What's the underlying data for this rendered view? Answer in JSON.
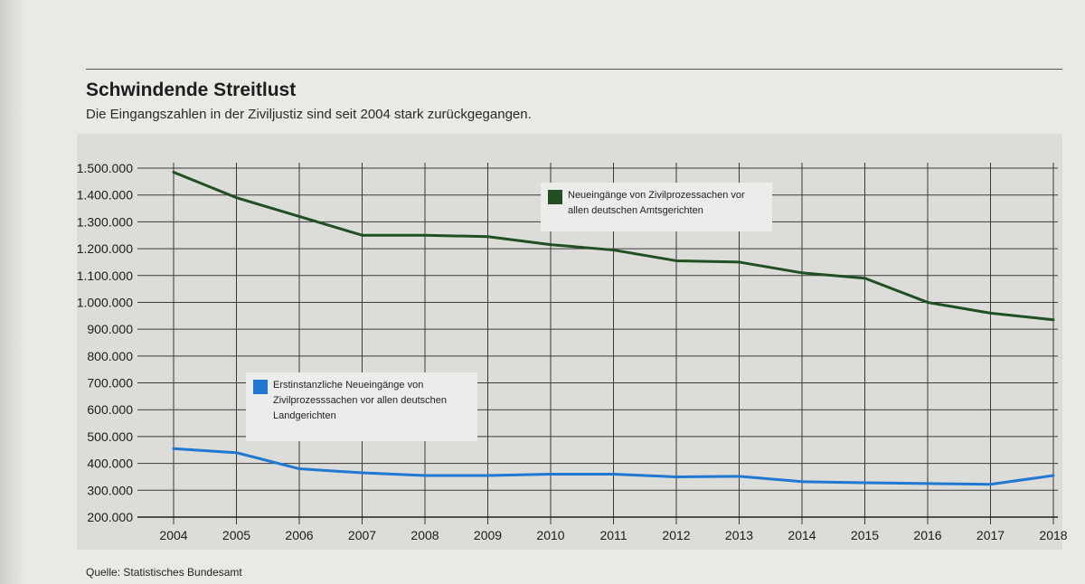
{
  "title": "Schwindende Streitlust",
  "subtitle": "Die Eingangszahlen in der Ziviljustiz sind seit 2004 stark zurückgegangen.",
  "source": "Quelle: Statistisches Bundesamt",
  "colors": {
    "green": "#1f4f22",
    "blue": "#1f78d1"
  },
  "chart_data": {
    "type": "line",
    "categories": [
      "2004",
      "2005",
      "2006",
      "2007",
      "2008",
      "2009",
      "2010",
      "2011",
      "2012",
      "2013",
      "2014",
      "2015",
      "2016",
      "2017",
      "2018"
    ],
    "series": [
      {
        "name": "Neueingänge von Zivilprozessachen vor allen deutschen Amtsgerichten",
        "color": "#1f4f22",
        "values": [
          1485000,
          1390000,
          1320000,
          1250000,
          1250000,
          1245000,
          1215000,
          1195000,
          1155000,
          1150000,
          1110000,
          1090000,
          1000000,
          960000,
          935000
        ]
      },
      {
        "name": "Erstinstanzliche Neueingänge von Zivilprozesssachen vor allen deutschen Landgerichten",
        "color": "#1f78d1",
        "values": [
          455000,
          440000,
          380000,
          365000,
          355000,
          355000,
          360000,
          360000,
          350000,
          352000,
          332000,
          328000,
          325000,
          322000,
          355000
        ]
      }
    ],
    "yticks": [
      "1.500.000",
      "1.400.000",
      "1.300.000",
      "1.200.000",
      "1.100.000",
      "1.000.000",
      "900.000",
      "800.000",
      "700.000",
      "600.000",
      "500.000",
      "400.000",
      "300.000",
      "200.000"
    ],
    "ylim": [
      200000,
      1500000
    ],
    "grid": true,
    "legend": {
      "green_label": "Neueingänge von Zivilprozessachen vor allen deutschen Amtsgerichten",
      "blue_label": "Erstinstanzliche Neueingänge von Zivilprozesssachen vor allen deutschen Landgerichten"
    }
  }
}
